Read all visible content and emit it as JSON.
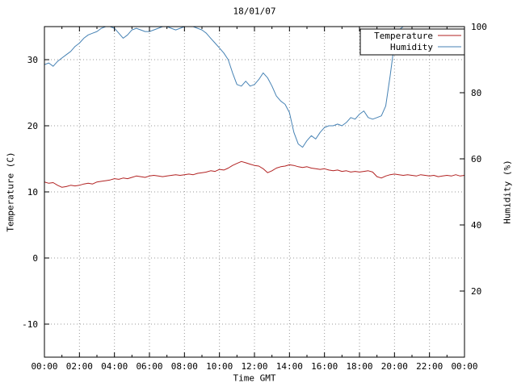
{
  "title": "18/01/07",
  "axes": {
    "x": {
      "label": "Time GMT",
      "range_hours": [
        0,
        24
      ],
      "major_tick_hours": 2,
      "minor_tick_hours": 1,
      "tick_labels": [
        "00:00",
        "02:00",
        "04:00",
        "06:00",
        "08:00",
        "10:00",
        "12:00",
        "14:00",
        "16:00",
        "18:00",
        "20:00",
        "22:00",
        "00:00"
      ]
    },
    "y_left": {
      "label": "Temperature (C)",
      "range": [
        -15,
        35
      ],
      "tick_values": [
        30,
        20,
        10,
        0,
        -10
      ]
    },
    "y_right": {
      "label": "Humidity (%)",
      "range": [
        0,
        100
      ],
      "tick_values": [
        100,
        80,
        60,
        40,
        20
      ]
    }
  },
  "legend": {
    "position": "top-right-inside",
    "entries": [
      "Temperature",
      "Humidity"
    ]
  },
  "chart_data": {
    "type": "line",
    "title": "18/01/07",
    "xlabel": "Time GMT",
    "grid": true,
    "x_start_hour": 0,
    "x_step_hours": 0.25,
    "x_end_hour": 24,
    "y_left_range": [
      -15,
      35
    ],
    "y_right_range": [
      0,
      100
    ],
    "series": [
      {
        "name": "Temperature",
        "axis": "left",
        "unit": "C",
        "color": "#b22222",
        "values": [
          11.5,
          11.3,
          11.4,
          11.0,
          10.7,
          10.8,
          11.0,
          10.9,
          11.0,
          11.2,
          11.3,
          11.2,
          11.5,
          11.6,
          11.7,
          11.8,
          12.0,
          11.9,
          12.1,
          12.0,
          12.2,
          12.4,
          12.3,
          12.2,
          12.4,
          12.5,
          12.4,
          12.3,
          12.4,
          12.5,
          12.6,
          12.5,
          12.6,
          12.7,
          12.6,
          12.8,
          12.9,
          13.0,
          13.2,
          13.1,
          13.4,
          13.3,
          13.6,
          14.0,
          14.3,
          14.6,
          14.4,
          14.2,
          14.0,
          13.9,
          13.5,
          12.9,
          13.2,
          13.6,
          13.8,
          13.9,
          14.1,
          14.0,
          13.8,
          13.7,
          13.8,
          13.6,
          13.5,
          13.4,
          13.5,
          13.3,
          13.2,
          13.3,
          13.1,
          13.2,
          13.0,
          13.1,
          13.0,
          13.1,
          13.2,
          13.0,
          12.3,
          12.1,
          12.4,
          12.6,
          12.7,
          12.6,
          12.5,
          12.6,
          12.5,
          12.4,
          12.6,
          12.5,
          12.4,
          12.5,
          12.3,
          12.4,
          12.5,
          12.4,
          12.6,
          12.4,
          12.5
        ]
      },
      {
        "name": "Humidity",
        "axis": "right",
        "unit": "%",
        "color": "#4682b4",
        "values": [
          88.5,
          89.0,
          88.0,
          89.5,
          90.5,
          91.5,
          92.5,
          94.0,
          95.0,
          96.5,
          97.5,
          98.0,
          98.5,
          99.5,
          100,
          100,
          99.5,
          98.0,
          96.5,
          97.5,
          99.0,
          99.5,
          99.0,
          98.5,
          98.5,
          99.0,
          99.5,
          100,
          100,
          99.5,
          99.0,
          99.5,
          100,
          100,
          100,
          99.5,
          99.0,
          98.0,
          96.5,
          95.0,
          93.5,
          92.0,
          90.0,
          86.0,
          82.5,
          82.0,
          83.5,
          82.0,
          82.5,
          84.0,
          86.0,
          84.5,
          82.0,
          79.0,
          77.5,
          76.5,
          74.0,
          68.0,
          64.5,
          63.5,
          65.5,
          67.0,
          66.0,
          68.0,
          69.5,
          70.0,
          70.0,
          70.5,
          70.0,
          71.0,
          72.5,
          72.0,
          73.5,
          74.5,
          72.5,
          72.0,
          72.5,
          73.0,
          76.0,
          85.0,
          95.0,
          99.0,
          100,
          100,
          100,
          100,
          100,
          100,
          100,
          100,
          100,
          100,
          100,
          100,
          100,
          100,
          100
        ]
      }
    ]
  }
}
